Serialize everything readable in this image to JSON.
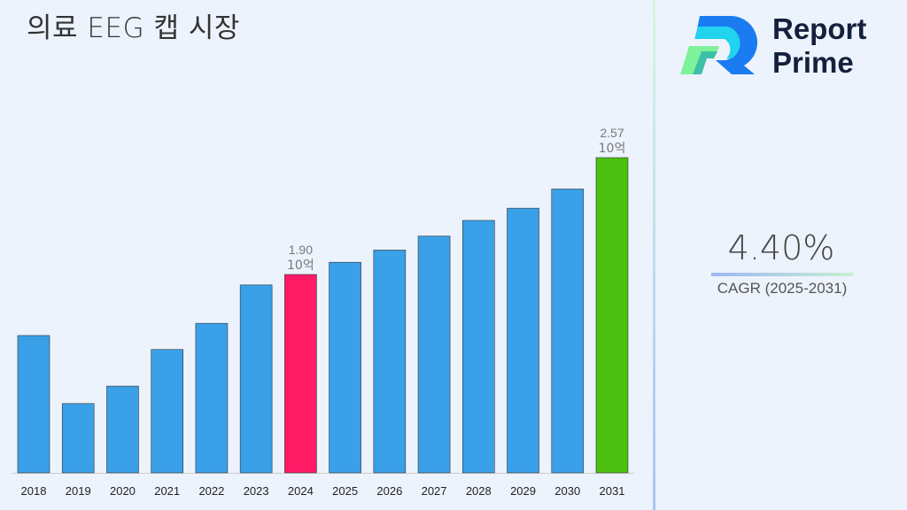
{
  "title": "의료 EEG 캡 시장",
  "logo": {
    "line1": "Report",
    "line2": "Prime"
  },
  "cagr": {
    "value": "4.40%",
    "label": "CAGR (2025-2031)"
  },
  "colors": {
    "default": "#3aa0e8",
    "highlight_2024": "#ff1a66",
    "highlight_2031": "#4cc010"
  },
  "chart_data": {
    "type": "bar",
    "title": "의료 EEG 캡 시장",
    "categories": [
      "2018",
      "2019",
      "2020",
      "2021",
      "2022",
      "2023",
      "2024",
      "2025",
      "2026",
      "2027",
      "2028",
      "2029",
      "2030",
      "2031"
    ],
    "values": [
      1.55,
      1.16,
      1.26,
      1.47,
      1.62,
      1.84,
      1.9,
      1.97,
      2.04,
      2.12,
      2.21,
      2.28,
      2.39,
      2.57
    ],
    "unit": "10억",
    "data_labels": [
      {
        "category": "2024",
        "value": "1.90",
        "unit": "10억"
      },
      {
        "category": "2031",
        "value": "2.57",
        "unit": "10억"
      }
    ],
    "grid": false,
    "legend": "none"
  }
}
